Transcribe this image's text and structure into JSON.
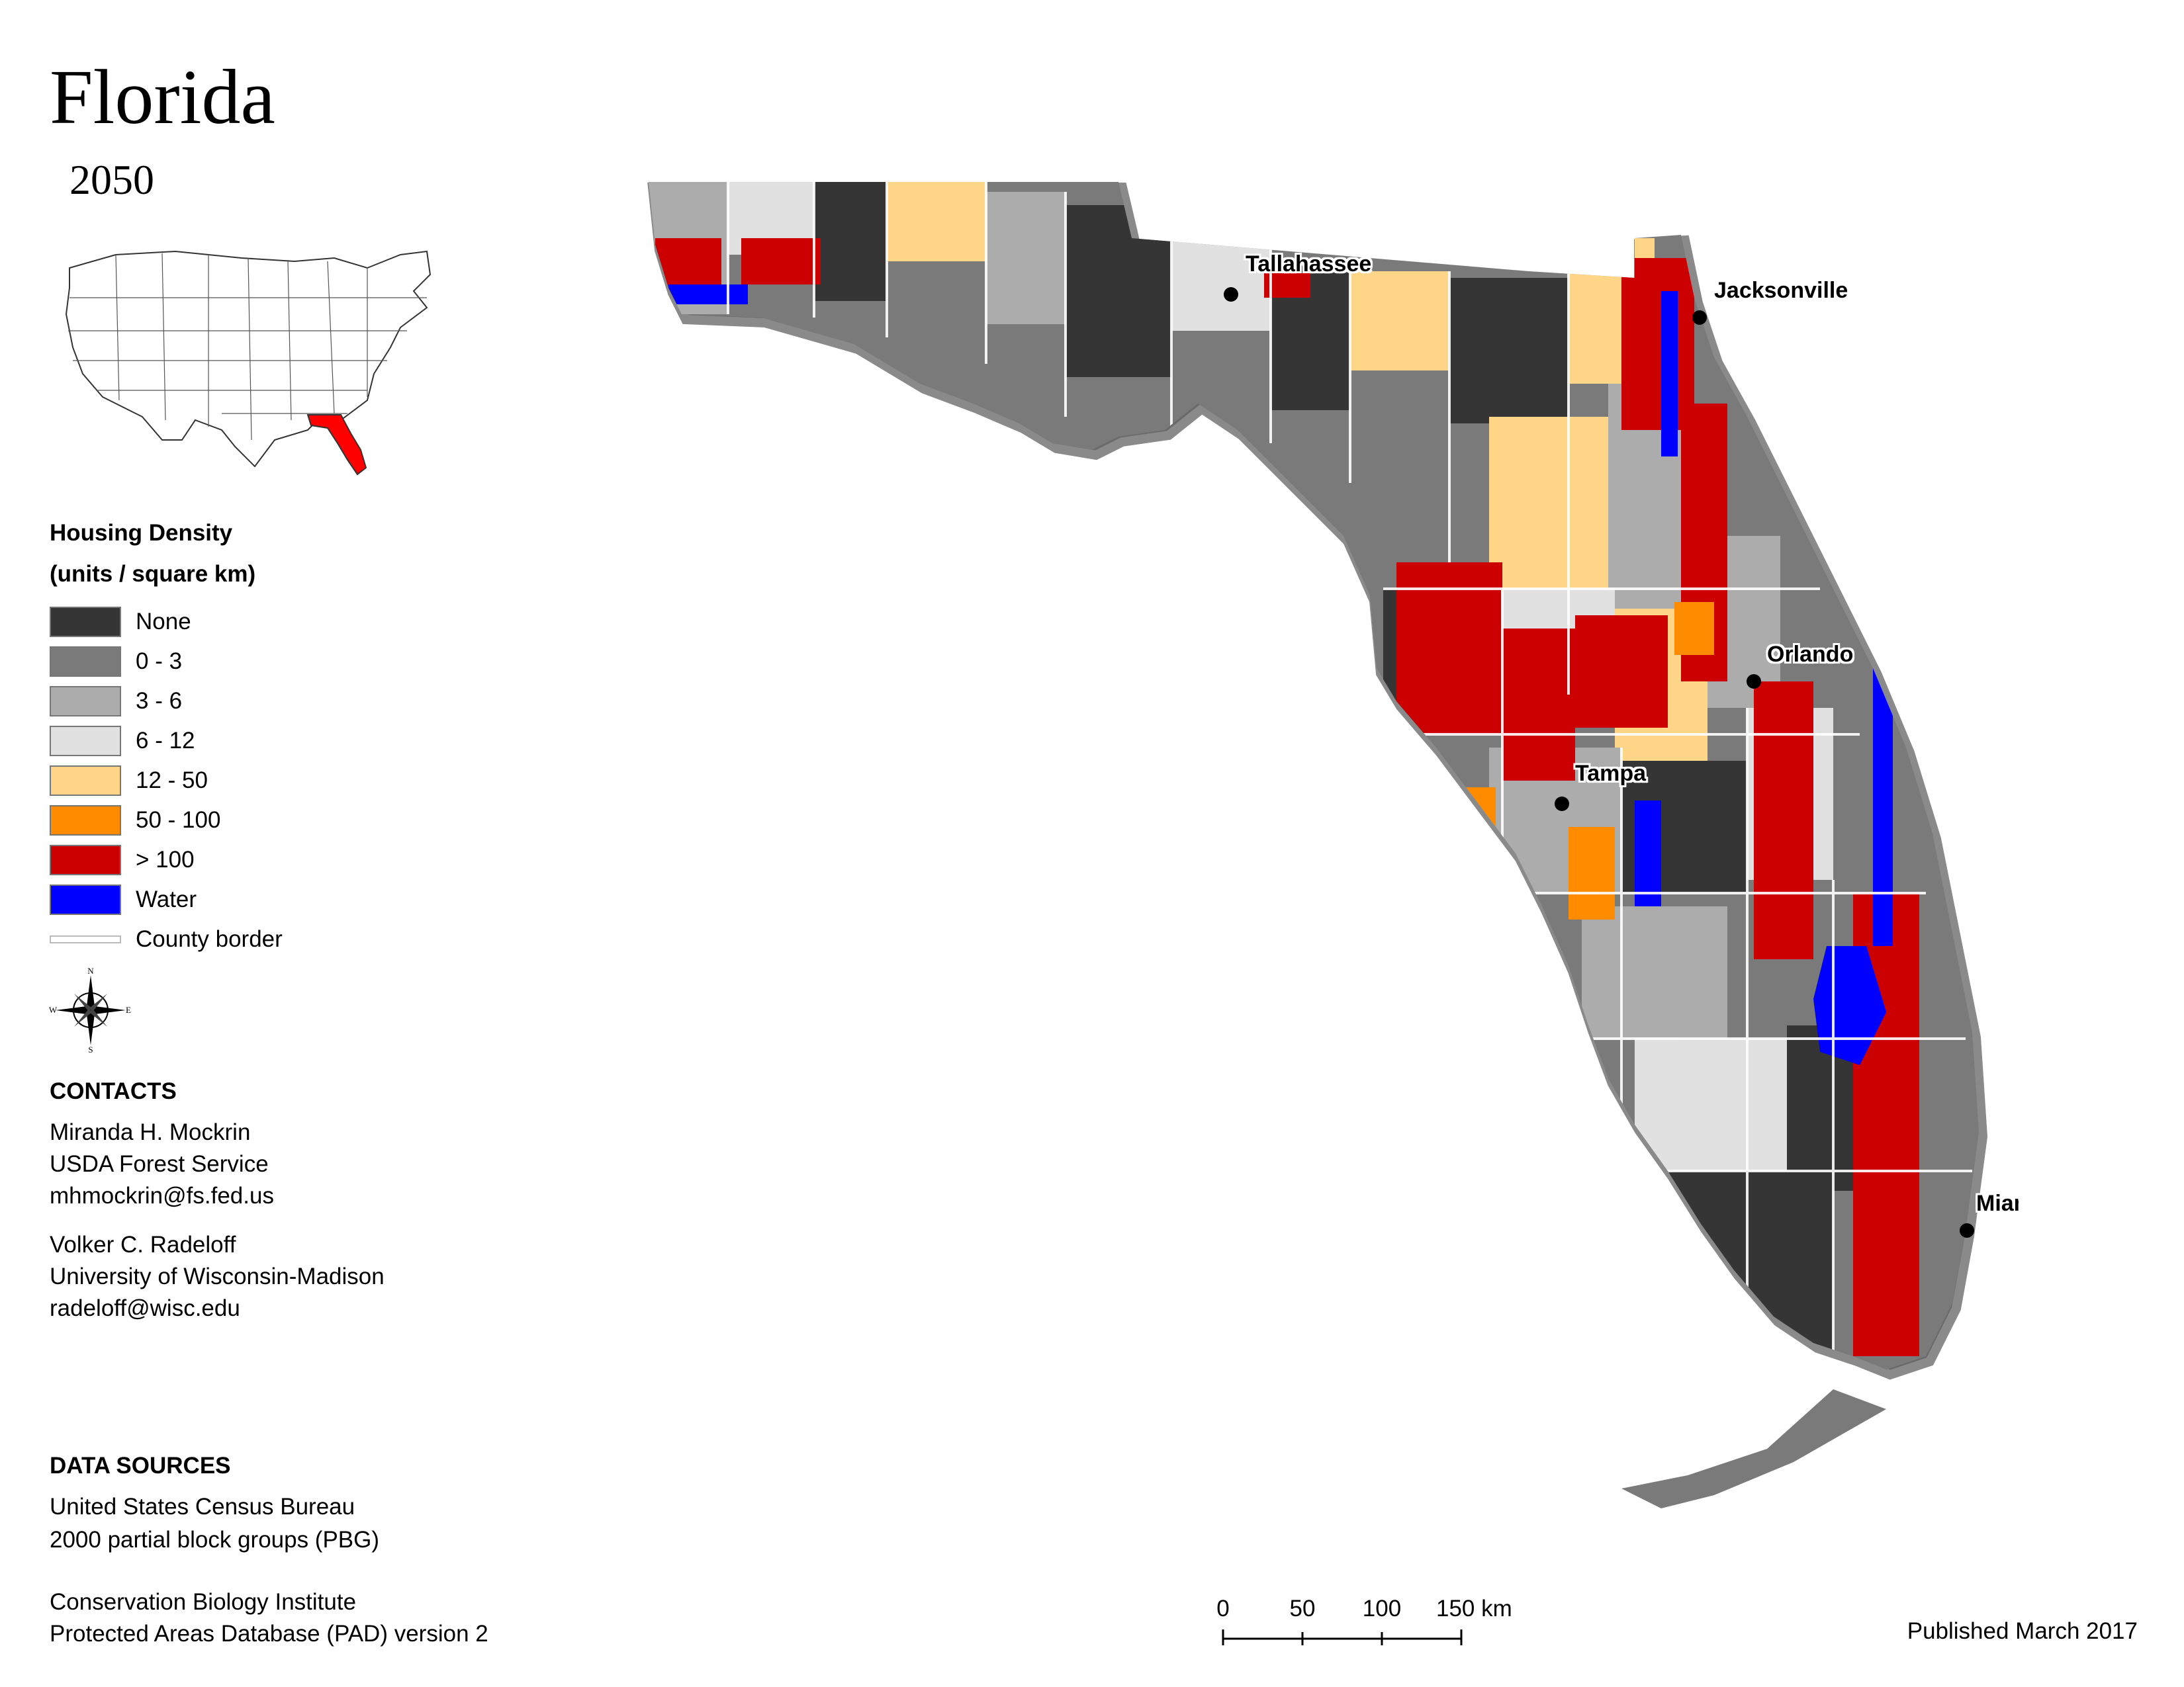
{
  "title": "Florida",
  "subtitle": "2050",
  "legend": {
    "title_line1": "Housing Density",
    "title_line2": "(units / square km)",
    "items": [
      {
        "label": "None",
        "color": "#353535"
      },
      {
        "label": "0 - 3",
        "color": "#7a7a7a"
      },
      {
        "label": "3 - 6",
        "color": "#acacac"
      },
      {
        "label": "6 - 12",
        "color": "#e1e1e1"
      },
      {
        "label": "12 - 50",
        "color": "#ffd588"
      },
      {
        "label": "50 - 100",
        "color": "#ff8c00"
      },
      {
        "label": "> 100",
        "color": "#cc0000"
      },
      {
        "label": "Water",
        "color": "#0000ff"
      }
    ],
    "county_border_label": "County border"
  },
  "compass": {
    "n": "N",
    "s": "S",
    "e": "E",
    "w": "W"
  },
  "contacts": {
    "heading": "CONTACTS",
    "people": [
      {
        "name": "Miranda H. Mockrin",
        "org": "USDA Forest Service",
        "email": "mhmockrin@fs.fed.us"
      },
      {
        "name": "Volker C. Radeloff",
        "org": "University of Wisconsin-Madison",
        "email": "radeloff@wisc.edu"
      }
    ]
  },
  "data_sources": {
    "heading": "DATA SOURCES",
    "lines": [
      "United States Census Bureau",
      "2000 partial block groups (PBG)",
      "Conservation Biology Institute",
      "Protected Areas Database (PAD) version 2"
    ]
  },
  "scale_bar": {
    "ticks": [
      "0",
      "50",
      "100",
      "150 km"
    ]
  },
  "cities": [
    {
      "name": "Tallahassee"
    },
    {
      "name": "Jacksonville"
    },
    {
      "name": "Orlando"
    },
    {
      "name": "Tampa"
    },
    {
      "name": "Miami"
    }
  ],
  "published": "Published March 2017",
  "highlight_color": "#ff0000"
}
